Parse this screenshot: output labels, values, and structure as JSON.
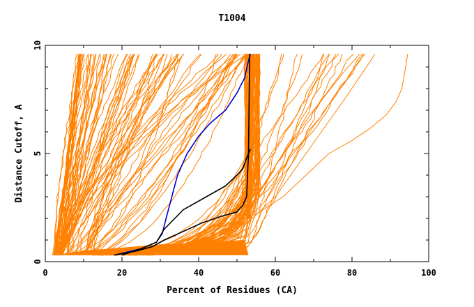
{
  "chart_data": {
    "type": "line",
    "title": "T1004",
    "xlabel": "Percent of Residues (CA)",
    "ylabel": "Distance Cutoff, A",
    "xlim": [
      0,
      100
    ],
    "ylim": [
      0,
      10
    ],
    "x_ticks": [
      0,
      20,
      40,
      60,
      80,
      100
    ],
    "y_ticks": [
      0,
      5,
      10
    ],
    "grid": false,
    "colors": {
      "background_curves": "#ff8000",
      "highlight_blue": "#0000cc",
      "highlight_black": "#000000"
    },
    "background_series_count": 150,
    "series": [
      {
        "color": "#0000cc",
        "x": [
          18,
          25,
          29,
          30.5,
          31.5,
          33,
          34.5,
          37,
          40,
          43,
          47,
          50,
          52,
          53,
          53.5
        ],
        "y": [
          0.3,
          0.6,
          0.9,
          1.3,
          2.0,
          3.0,
          4.0,
          5.0,
          5.8,
          6.4,
          7.0,
          7.8,
          8.5,
          9.3,
          9.6
        ]
      },
      {
        "color": "#000000",
        "x": [
          20,
          25,
          29,
          31,
          36,
          42,
          47,
          50,
          51.5,
          52.5,
          53,
          53.5
        ],
        "y": [
          0.3,
          0.6,
          0.9,
          1.5,
          2.4,
          3.0,
          3.5,
          4.0,
          4.3,
          4.8,
          5.0,
          5.2
        ]
      },
      {
        "color": "#000000",
        "x": [
          18,
          24,
          28,
          31,
          36,
          41,
          46,
          50,
          51.5,
          52.5,
          53,
          53.2,
          53.3
        ],
        "y": [
          0.3,
          0.5,
          0.7,
          1.0,
          1.4,
          1.8,
          2.1,
          2.3,
          2.6,
          3.0,
          5.0,
          8.0,
          9.6
        ]
      },
      {
        "color": "#ff8000",
        "x": [
          20,
          40,
          55,
          62,
          68,
          74,
          80,
          85,
          89,
          91.5,
          93,
          94,
          94.5
        ],
        "y": [
          0.3,
          1.2,
          2.2,
          3.0,
          4.0,
          5.0,
          5.6,
          6.2,
          6.8,
          7.4,
          8.0,
          9.0,
          9.6
        ]
      },
      {
        "color": "#ff8000",
        "x": [
          25,
          45,
          54,
          60,
          66,
          72,
          78,
          83,
          86
        ],
        "y": [
          0.3,
          1.0,
          2.0,
          3.0,
          4.5,
          6.0,
          7.5,
          8.8,
          9.6
        ]
      },
      {
        "color": "#ff8000",
        "x": [
          28,
          47,
          55,
          62,
          70,
          78,
          82
        ],
        "y": [
          0.3,
          1.0,
          3.0,
          5.0,
          7.0,
          8.8,
          9.6
        ]
      }
    ]
  }
}
